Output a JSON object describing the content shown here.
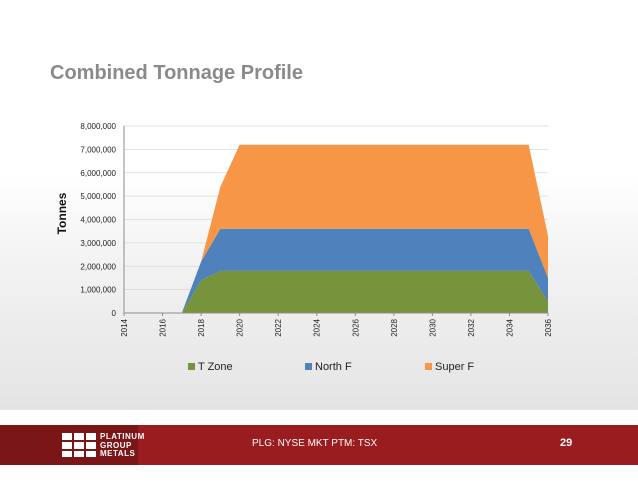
{
  "slide": {
    "title": "Combined Tonnage Profile",
    "ticker": "PLG: NYSE MKT PTM: TSX",
    "page_number": "29",
    "logo_lines": [
      "PLATINUM",
      "GROUP",
      "METALS"
    ]
  },
  "colors": {
    "t_zone": "#77933c",
    "north_f": "#4f81bd",
    "super_f": "#f79646",
    "footer": "#9b1c1f"
  },
  "chart_data": {
    "type": "area",
    "stacked": true,
    "title": "",
    "xlabel": "",
    "ylabel": "Tonnes",
    "ylim": [
      0,
      8000000
    ],
    "y_ticks": [
      "0",
      "1,000,000",
      "2,000,000",
      "3,000,000",
      "4,000,000",
      "5,000,000",
      "6,000,000",
      "7,000,000",
      "8,000,000"
    ],
    "x": [
      2014,
      2015,
      2016,
      2017,
      2018,
      2019,
      2020,
      2021,
      2022,
      2023,
      2024,
      2025,
      2026,
      2027,
      2028,
      2029,
      2030,
      2031,
      2032,
      2033,
      2034,
      2035,
      2036
    ],
    "x_tick_labels": [
      "2014",
      "2016",
      "2018",
      "2020",
      "2022",
      "2024",
      "2026",
      "2028",
      "2030",
      "2032",
      "2034",
      "2036"
    ],
    "series": [
      {
        "name": "T Zone",
        "values": [
          0,
          0,
          0,
          0,
          1400000,
          1800000,
          1800000,
          1800000,
          1800000,
          1800000,
          1800000,
          1800000,
          1800000,
          1800000,
          1800000,
          1800000,
          1800000,
          1800000,
          1800000,
          1800000,
          1800000,
          1800000,
          500000
        ]
      },
      {
        "name": "North F",
        "values": [
          0,
          0,
          0,
          0,
          800000,
          1800000,
          1800000,
          1800000,
          1800000,
          1800000,
          1800000,
          1800000,
          1800000,
          1800000,
          1800000,
          1800000,
          1800000,
          1800000,
          1800000,
          1800000,
          1800000,
          1800000,
          1000000
        ]
      },
      {
        "name": "Super F",
        "values": [
          0,
          0,
          0,
          0,
          0,
          1800000,
          3600000,
          3600000,
          3600000,
          3600000,
          3600000,
          3600000,
          3600000,
          3600000,
          3600000,
          3600000,
          3600000,
          3600000,
          3600000,
          3600000,
          3600000,
          3600000,
          1800000
        ]
      }
    ],
    "legend": [
      "T Zone",
      "North F",
      "Super F"
    ],
    "legend_position": "bottom",
    "grid": true
  }
}
